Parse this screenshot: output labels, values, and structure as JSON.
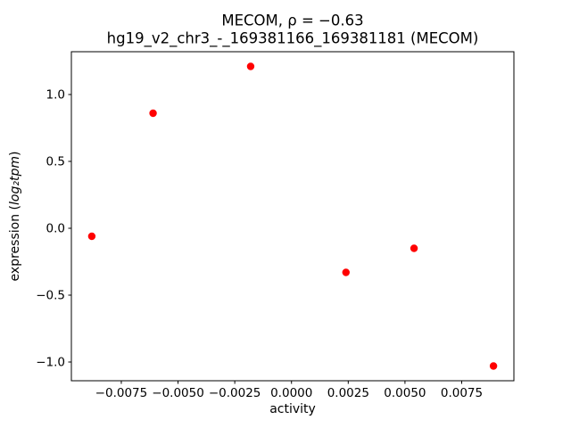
{
  "chart_data": {
    "type": "scatter",
    "title": "MECOM, ρ = −0.63",
    "subtitle": "hg19_v2_chr3_-_169381166_169381181 (MECOM)",
    "xlabel": "activity",
    "ylabel": "expression (log₂tpm)",
    "ylabel_parts": {
      "prefix": "expression (",
      "math": "log₂tpm",
      "suffix": ")"
    },
    "correlation_rho": -0.63,
    "marker_color": "#ff0000",
    "x": [
      -0.0088,
      -0.0061,
      -0.0018,
      0.0024,
      0.0054,
      0.0089
    ],
    "y": [
      -0.06,
      0.86,
      1.21,
      -0.33,
      -0.15,
      -1.03
    ],
    "xlim": [
      -0.0097,
      0.0098
    ],
    "ylim": [
      -1.14,
      1.32
    ],
    "xticks": {
      "values": [
        -0.0075,
        -0.005,
        -0.0025,
        0,
        0.0025,
        0.005,
        0.0075
      ],
      "labels": [
        "−0.0075",
        "−0.0050",
        "−0.0025",
        "0.0000",
        "0.0025",
        "0.0050",
        "0.0075"
      ]
    },
    "yticks": {
      "values": [
        -1.0,
        -0.5,
        0.0,
        0.5,
        1.0
      ],
      "labels": [
        "−1.0",
        "−0.5",
        "0.0",
        "0.5",
        "1.0"
      ]
    },
    "grid": false,
    "legend_position": "none"
  }
}
